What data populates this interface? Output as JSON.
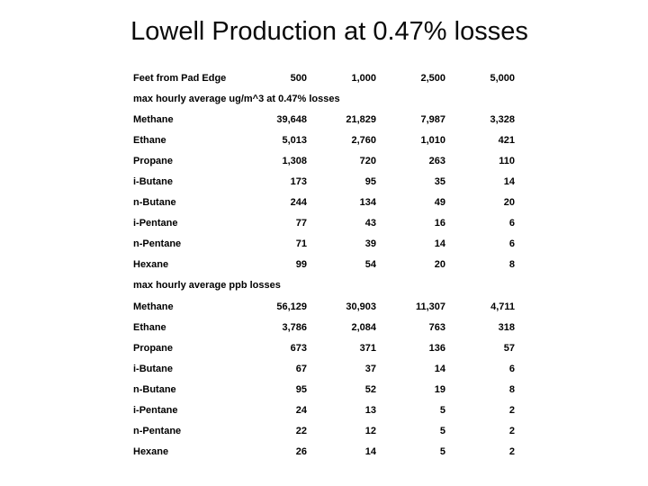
{
  "colors": {
    "background": "#ffffff",
    "text": "#000000"
  },
  "slide": {
    "title": "Lowell Production at 0.47% losses"
  },
  "table": {
    "header": {
      "label": "Feet from Pad Edge",
      "columns": [
        "500",
        "1,000",
        "2,500",
        "5,000"
      ]
    },
    "sections": [
      {
        "label": "max hourly average ug/m^3 at 0.47% losses",
        "rows": [
          {
            "label": "Methane",
            "values": [
              "39,648",
              "21,829",
              "7,987",
              "3,328"
            ]
          },
          {
            "label": "Ethane",
            "values": [
              "5,013",
              "2,760",
              "1,010",
              "421"
            ]
          },
          {
            "label": "Propane",
            "values": [
              "1,308",
              "720",
              "263",
              "110"
            ]
          },
          {
            "label": "i-Butane",
            "values": [
              "173",
              "95",
              "35",
              "14"
            ]
          },
          {
            "label": "n-Butane",
            "values": [
              "244",
              "134",
              "49",
              "20"
            ]
          },
          {
            "label": "i-Pentane",
            "values": [
              "77",
              "43",
              "16",
              "6"
            ]
          },
          {
            "label": "n-Pentane",
            "values": [
              "71",
              "39",
              "14",
              "6"
            ]
          },
          {
            "label": "Hexane",
            "values": [
              "99",
              "54",
              "20",
              "8"
            ]
          }
        ]
      },
      {
        "label": "max hourly average ppb losses",
        "rows": [
          {
            "label": "Methane",
            "values": [
              "56,129",
              "30,903",
              "11,307",
              "4,711"
            ]
          },
          {
            "label": "Ethane",
            "values": [
              "3,786",
              "2,084",
              "763",
              "318"
            ]
          },
          {
            "label": "Propane",
            "values": [
              "673",
              "371",
              "136",
              "57"
            ]
          },
          {
            "label": "i-Butane",
            "values": [
              "67",
              "37",
              "14",
              "6"
            ]
          },
          {
            "label": "n-Butane",
            "values": [
              "95",
              "52",
              "19",
              "8"
            ]
          },
          {
            "label": "i-Pentane",
            "values": [
              "24",
              "13",
              "5",
              "2"
            ]
          },
          {
            "label": "n-Pentane",
            "values": [
              "22",
              "12",
              "5",
              "2"
            ]
          },
          {
            "label": "Hexane",
            "values": [
              "26",
              "14",
              "5",
              "2"
            ]
          }
        ]
      }
    ]
  }
}
